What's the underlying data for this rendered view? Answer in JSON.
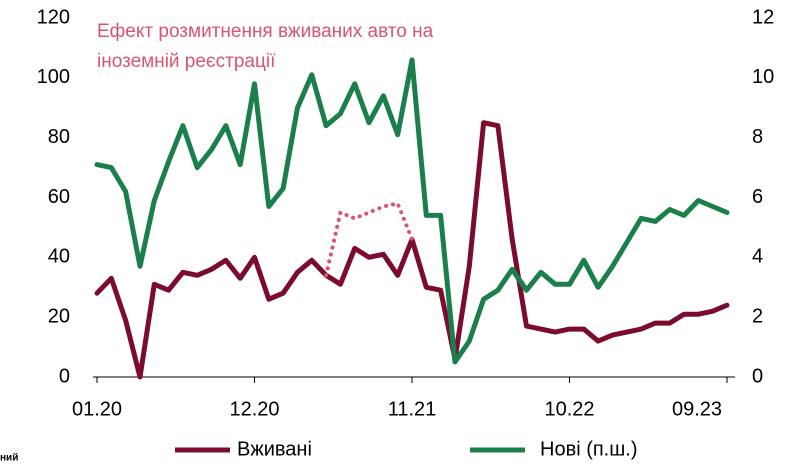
{
  "chart_data": {
    "type": "line",
    "annotation": [
      "Ефект розмитнення вживаних авто на",
      "іноземній реєстрації"
    ],
    "footer_fragment": "ний",
    "categories": [
      "01.20",
      null,
      null,
      null,
      null,
      null,
      null,
      null,
      null,
      null,
      null,
      "12.20",
      null,
      null,
      null,
      null,
      null,
      null,
      null,
      null,
      null,
      null,
      "11.21",
      null,
      null,
      null,
      null,
      null,
      null,
      null,
      null,
      null,
      null,
      "10.22",
      null,
      null,
      null,
      null,
      null,
      null,
      null,
      null,
      null,
      null,
      "09.23"
    ],
    "series": [
      {
        "name": "Вживані",
        "color": "#7b0c2e",
        "axis": "y",
        "values": [
          28,
          33,
          19,
          0,
          31,
          29,
          35,
          34,
          36,
          39,
          33,
          40,
          26,
          28,
          35,
          39,
          34,
          31,
          43,
          40,
          41,
          34,
          46,
          30,
          29,
          6,
          37,
          85,
          84,
          46,
          17,
          16,
          15,
          16,
          16,
          12,
          14,
          15,
          16,
          18,
          18,
          21,
          21,
          22,
          24
        ]
      },
      {
        "name": "Нові (п.ш.)",
        "color": "#1a7f4b",
        "axis": "y2",
        "values": [
          7.1,
          7.0,
          6.2,
          3.7,
          5.9,
          7.2,
          8.4,
          7.0,
          7.6,
          8.4,
          7.1,
          9.8,
          5.7,
          6.3,
          9.0,
          10.1,
          8.4,
          8.8,
          9.8,
          8.5,
          9.4,
          8.1,
          10.6,
          5.4,
          5.4,
          0.5,
          1.2,
          2.6,
          2.9,
          3.6,
          2.9,
          3.5,
          3.1,
          3.1,
          3.9,
          3.0,
          3.7,
          4.5,
          5.3,
          5.2,
          5.6,
          5.4,
          5.9,
          5.7,
          5.5
        ]
      },
      {
        "color": "#d9546f",
        "axis": "y",
        "style": "dotted",
        "values": [
          null,
          null,
          null,
          null,
          null,
          null,
          null,
          null,
          null,
          null,
          null,
          null,
          null,
          null,
          null,
          null,
          34,
          55,
          53,
          55,
          57,
          58,
          46,
          null,
          null,
          null,
          null,
          null,
          null,
          null,
          null,
          null,
          null,
          null,
          null,
          null,
          null,
          null,
          null,
          null,
          null,
          null,
          null,
          null,
          null
        ]
      }
    ],
    "ylim": [
      0,
      120
    ],
    "yticks": [
      0,
      20,
      40,
      60,
      80,
      100,
      120
    ],
    "y2lim": [
      0,
      12
    ],
    "y2ticks": [
      0,
      2,
      4,
      6,
      8,
      10,
      12
    ],
    "grid": false
  }
}
